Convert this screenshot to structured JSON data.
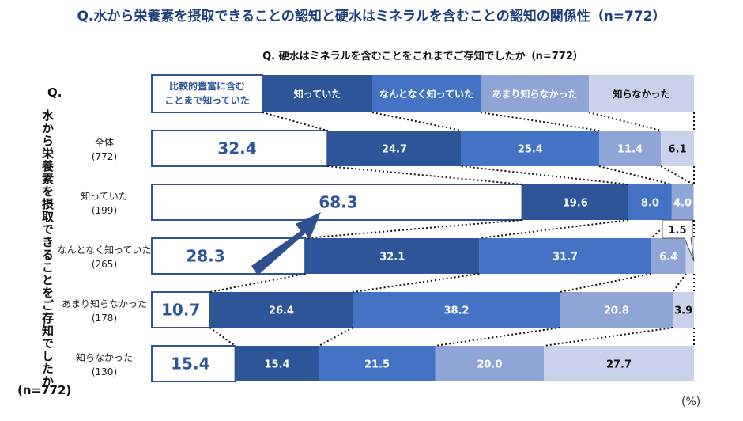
{
  "title": "Q.水から栄養素を摂取できることの認知と硬水はミネラルを含むことの認知の関係性（n=772）",
  "y_question": {
    "prefix": "Q.",
    "text": "水から栄養素を摂取できることをご存知でしたか",
    "n": "(n=772)"
  },
  "unit": "(%)",
  "callout": "1.5",
  "colors": {
    "s1": "#ffffff",
    "s2": "#2e5597",
    "s3": "#4472c4",
    "s4": "#8fa5d6",
    "s5": "#c9d1eb",
    "border": "#2e5597",
    "arrow": "#2f4f8f"
  },
  "chart_data": {
    "type": "bar",
    "stacked": true,
    "orientation": "horizontal",
    "title": "Q. 硬水はミネラルを含むことをこれまでご存知でしたか（n=772）",
    "series": [
      {
        "name": "比較的豊富に含むことまで知っていた",
        "values": [
          32.4,
          68.3,
          28.3,
          10.7,
          15.4
        ]
      },
      {
        "name": "知っていた",
        "values": [
          24.7,
          19.6,
          32.1,
          26.4,
          15.4
        ]
      },
      {
        "name": "なんとなく知っていた",
        "values": [
          25.4,
          8.0,
          31.7,
          38.2,
          21.5
        ]
      },
      {
        "name": "あまり知らなかった",
        "values": [
          11.4,
          4.0,
          6.4,
          20.8,
          20.0
        ]
      },
      {
        "name": "知らなかった",
        "values": [
          6.1,
          0,
          1.5,
          3.9,
          27.7
        ]
      }
    ],
    "categories": [
      {
        "label": "全体",
        "n": "(772)"
      },
      {
        "label": "知っていた",
        "n": "(199)"
      },
      {
        "label": "なんとなく知っていた",
        "n": "(265)"
      },
      {
        "label": "あまり知らなかった",
        "n": "(178)"
      },
      {
        "label": "知らなかった",
        "n": "(130)"
      }
    ],
    "labels": [
      [
        "32.4",
        "24.7",
        "25.4",
        "11.4",
        "6.1"
      ],
      [
        "68.3",
        "19.6",
        "8.0",
        "4.0",
        ""
      ],
      [
        "28.3",
        "32.1",
        "31.7",
        "6.4",
        ""
      ],
      [
        "10.7",
        "26.4",
        "38.2",
        "20.8",
        "3.9"
      ],
      [
        "15.4",
        "15.4",
        "21.5",
        "20.0",
        "27.7"
      ]
    ],
    "xlim": [
      0,
      100
    ]
  }
}
